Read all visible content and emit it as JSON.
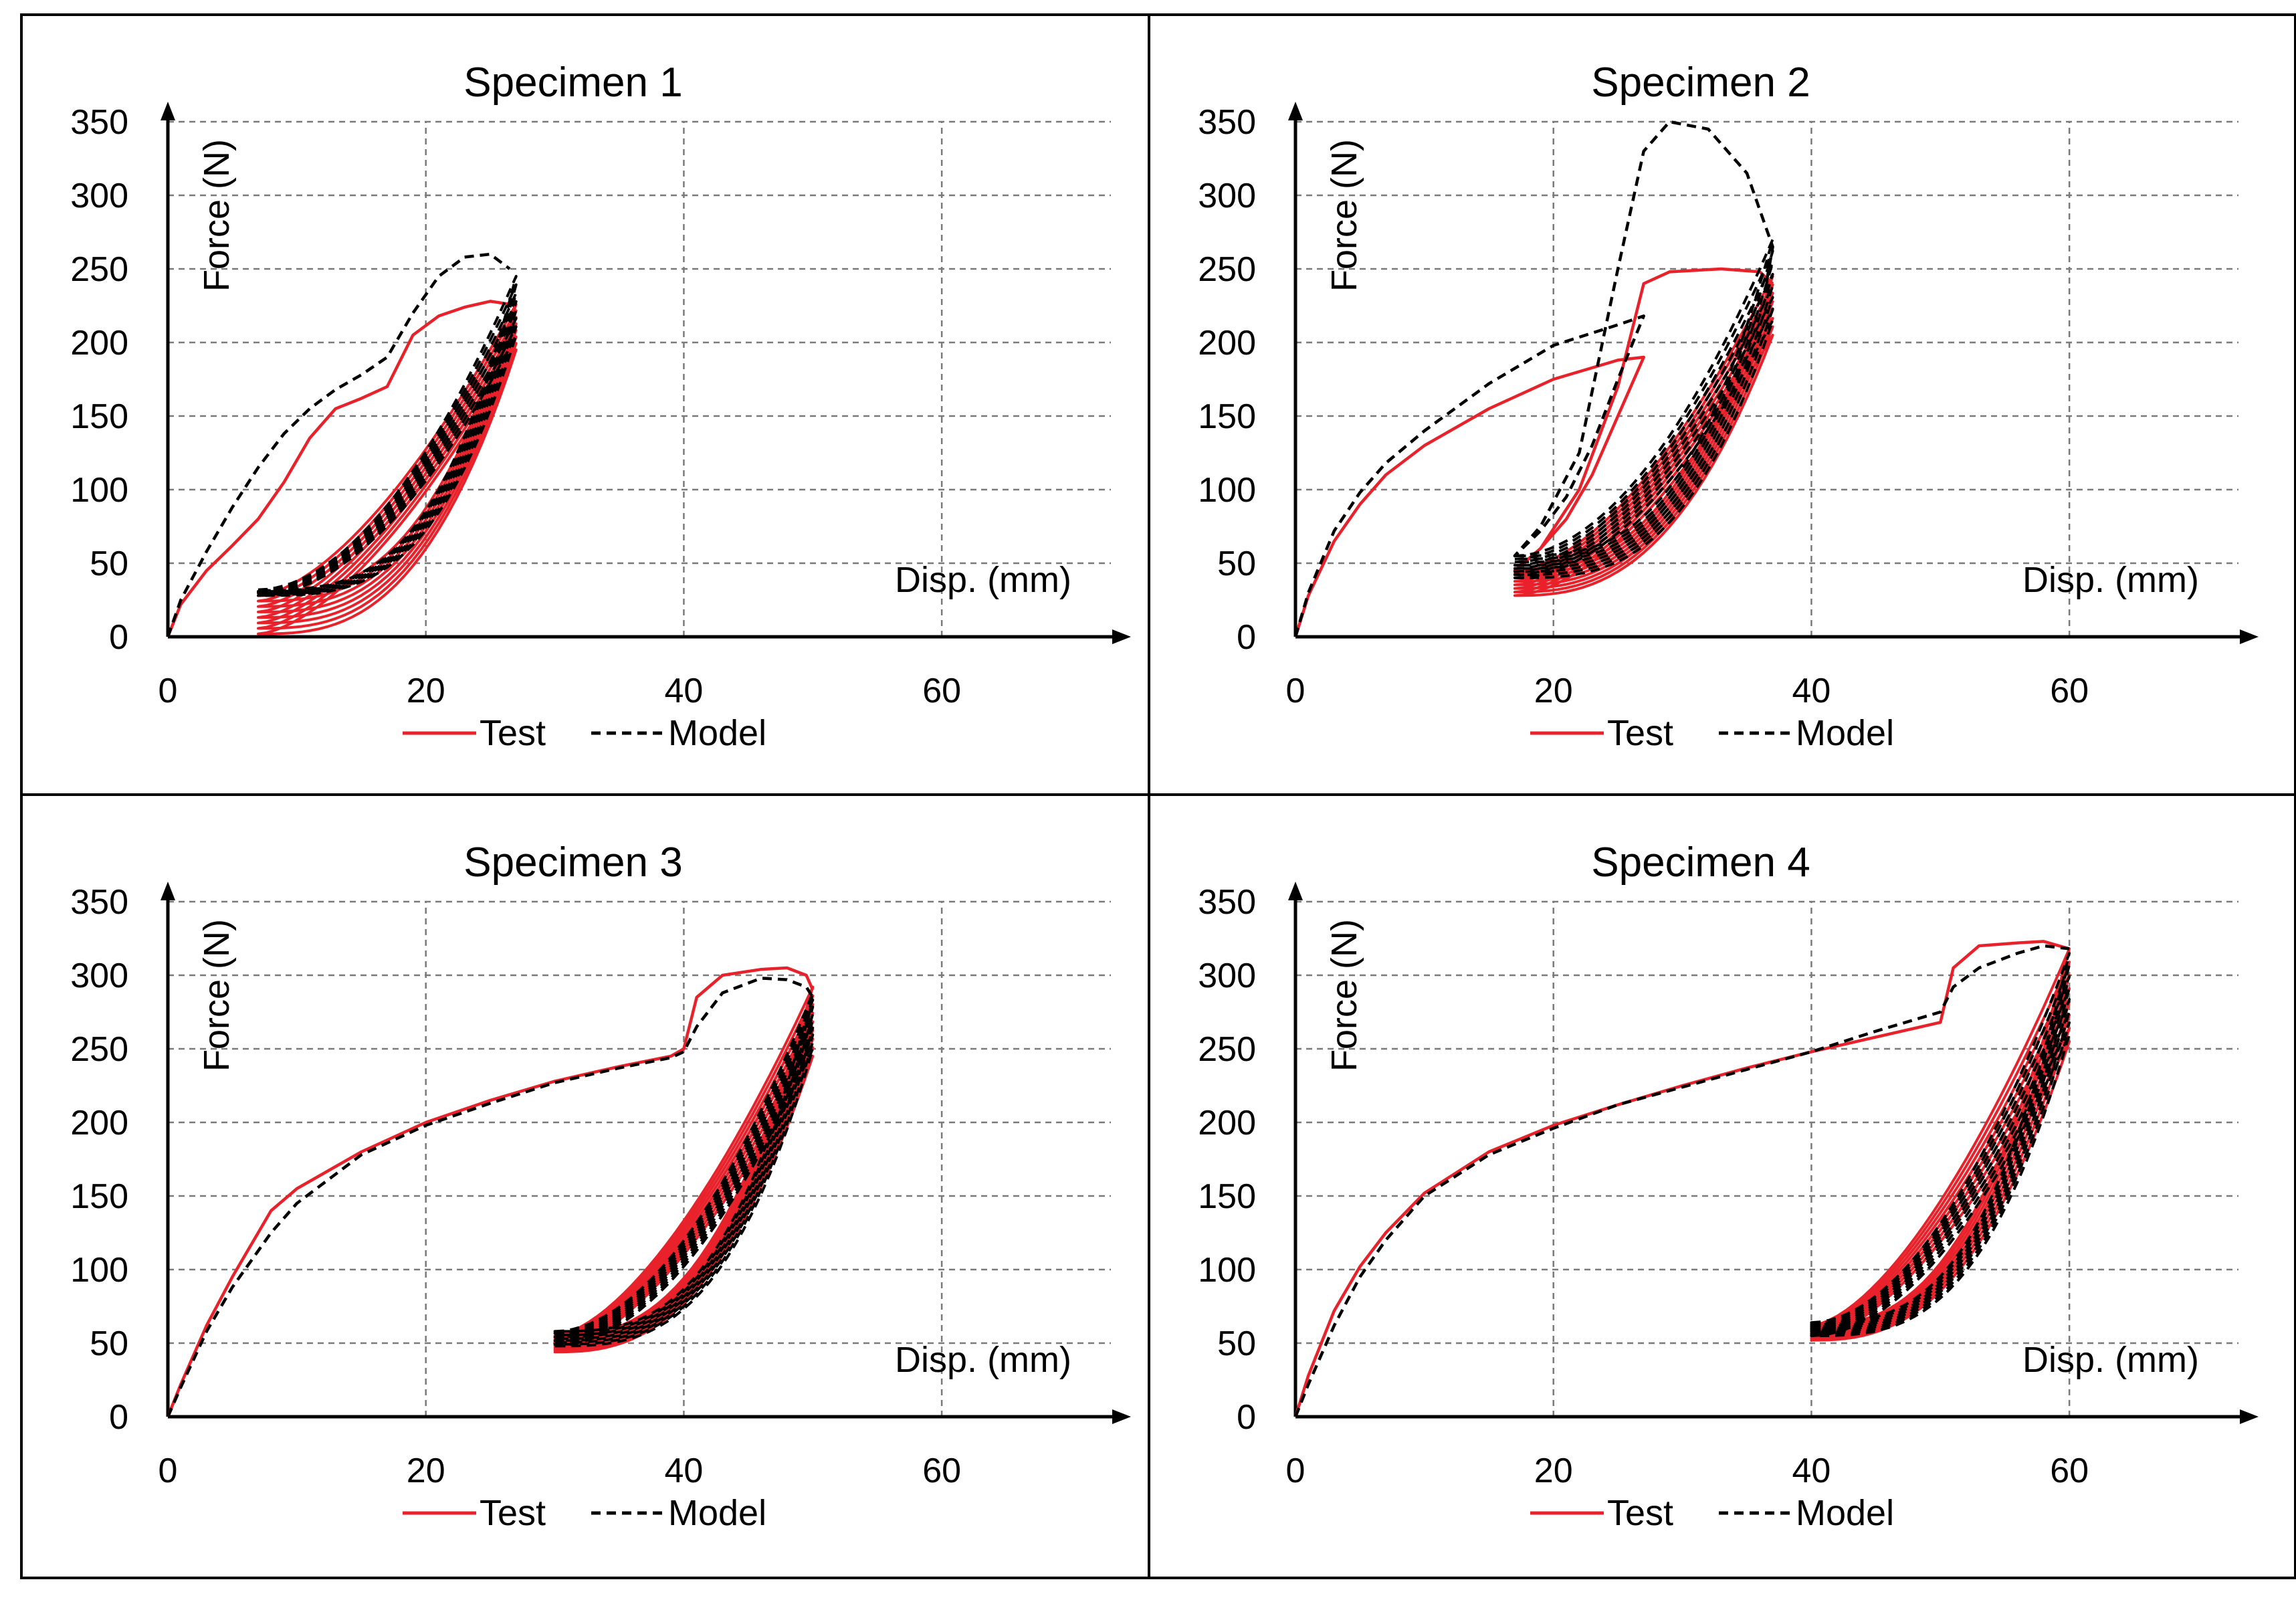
{
  "colors": {
    "test": "#e8212a",
    "model": "#000000",
    "grid": "#7a7a7a",
    "axis": "#000000",
    "frame": "#000000"
  },
  "chart_data": [
    {
      "type": "line",
      "title": "Specimen 1",
      "xlabel": "Disp. (mm)",
      "ylabel": "Force (N)",
      "xlim": [
        0,
        70
      ],
      "ylim": [
        0,
        350
      ],
      "xticks": [
        0,
        20,
        40,
        60
      ],
      "yticks": [
        0,
        50,
        100,
        150,
        200,
        250,
        300,
        350
      ],
      "grid": true,
      "legend": [
        "Test",
        "Model"
      ],
      "legend_position": "bottom-center",
      "series": [
        {
          "name": "Test",
          "style": "solid",
          "cycles": {
            "min": 7,
            "max": 27,
            "n": 8,
            "fmin_lo": 2,
            "fmin_hi": 28,
            "fmax_lo": 195,
            "fmax_hi": 226,
            "kl": 1.6,
            "ku": 2.8
          },
          "x": [
            0,
            1,
            3,
            5,
            7,
            9,
            11,
            13,
            15,
            17,
            19,
            21,
            23,
            25,
            26.5
          ],
          "y": [
            0,
            22,
            45,
            62,
            80,
            105,
            135,
            155,
            162,
            170,
            205,
            218,
            224,
            228,
            226
          ]
        },
        {
          "name": "Model",
          "style": "dashed",
          "cycles": {
            "min": 7,
            "max": 27,
            "n": 8,
            "fmin_lo": 28,
            "fmin_hi": 32,
            "fmax_lo": 205,
            "fmax_hi": 245,
            "kl": 1.9,
            "ku": 3.2
          },
          "x": [
            0,
            1,
            3,
            5,
            7,
            9,
            11,
            13,
            15,
            17,
            19,
            21,
            23,
            25,
            26.5
          ],
          "y": [
            0,
            25,
            58,
            88,
            115,
            138,
            155,
            168,
            178,
            190,
            220,
            245,
            258,
            260,
            250
          ]
        }
      ]
    },
    {
      "type": "line",
      "title": "Specimen 2",
      "xlabel": "Disp. (mm)",
      "ylabel": "Force (N)",
      "xlim": [
        0,
        70
      ],
      "ylim": [
        0,
        350
      ],
      "xticks": [
        0,
        20,
        40,
        60
      ],
      "yticks": [
        0,
        50,
        100,
        150,
        200,
        250,
        300,
        350
      ],
      "grid": true,
      "legend": [
        "Test",
        "Model"
      ],
      "legend_position": "bottom-center",
      "series": [
        {
          "name": "Test",
          "style": "solid",
          "cycles": {
            "min": 17,
            "max": 37,
            "n": 8,
            "fmin_lo": 28,
            "fmin_hi": 45,
            "fmax_lo": 205,
            "fmax_hi": 245,
            "kl": 1.7,
            "ku": 2.6
          },
          "x": [
            0,
            1,
            3,
            5,
            7,
            10,
            15,
            20,
            25,
            27,
            25,
            23,
            21,
            19,
            17,
            19,
            22,
            25,
            27,
            29,
            33,
            36,
            37
          ],
          "y": [
            0,
            28,
            65,
            90,
            110,
            130,
            155,
            175,
            188,
            190,
            150,
            110,
            80,
            60,
            45,
            60,
            100,
            170,
            240,
            248,
            250,
            248,
            240
          ]
        },
        {
          "name": "Model",
          "style": "dashed",
          "cycles": {
            "min": 17,
            "max": 37,
            "n": 8,
            "fmin_lo": 40,
            "fmin_hi": 55,
            "fmax_lo": 215,
            "fmax_hi": 270,
            "kl": 1.9,
            "ku": 3.0
          },
          "x": [
            0,
            1,
            3,
            5,
            7,
            10,
            15,
            20,
            25,
            27,
            25,
            23,
            21,
            19,
            17,
            19,
            22,
            25,
            27,
            29,
            32,
            35,
            37,
            36.5
          ],
          "y": [
            0,
            30,
            72,
            98,
            118,
            140,
            172,
            198,
            212,
            218,
            175,
            130,
            95,
            72,
            55,
            75,
            125,
            250,
            330,
            350,
            345,
            315,
            265,
            240
          ]
        }
      ]
    },
    {
      "type": "line",
      "title": "Specimen 3",
      "xlabel": "Disp. (mm)",
      "ylabel": "Force (N)",
      "xlim": [
        0,
        70
      ],
      "ylim": [
        0,
        350
      ],
      "xticks": [
        0,
        20,
        40,
        60
      ],
      "yticks": [
        0,
        50,
        100,
        150,
        200,
        250,
        300,
        350
      ],
      "grid": true,
      "legend": [
        "Test",
        "Model"
      ],
      "legend_position": "bottom-center",
      "series": [
        {
          "name": "Test",
          "style": "solid",
          "cycles": {
            "min": 30,
            "max": 50,
            "n": 9,
            "fmin_lo": 44,
            "fmin_hi": 55,
            "fmax_lo": 245,
            "fmax_hi": 292,
            "kl": 1.6,
            "ku": 2.6
          },
          "x": [
            0,
            1,
            3,
            5,
            8,
            10,
            15,
            20,
            25,
            30,
            35,
            39,
            40,
            41,
            43,
            46,
            48,
            49.5,
            50
          ],
          "y": [
            0,
            22,
            62,
            95,
            140,
            155,
            180,
            200,
            215,
            228,
            238,
            245,
            250,
            285,
            300,
            304,
            305,
            300,
            290
          ]
        },
        {
          "name": "Model",
          "style": "dashed",
          "cycles": {
            "min": 30,
            "max": 50,
            "n": 9,
            "fmin_lo": 48,
            "fmin_hi": 58,
            "fmax_lo": 250,
            "fmax_hi": 288,
            "kl": 1.9,
            "ku": 3.0
          },
          "x": [
            0,
            1,
            3,
            5,
            8,
            10,
            15,
            20,
            25,
            30,
            35,
            39,
            40,
            41,
            43,
            46,
            48,
            49.5,
            50
          ],
          "y": [
            0,
            20,
            58,
            88,
            125,
            145,
            178,
            198,
            213,
            227,
            237,
            244,
            248,
            265,
            288,
            298,
            297,
            292,
            285
          ]
        }
      ]
    },
    {
      "type": "line",
      "title": "Specimen 4",
      "xlabel": "Disp. (mm)",
      "ylabel": "Force (N)",
      "xlim": [
        0,
        70
      ],
      "ylim": [
        0,
        350
      ],
      "xticks": [
        0,
        20,
        40,
        60
      ],
      "yticks": [
        0,
        50,
        100,
        150,
        200,
        250,
        300,
        350
      ],
      "grid": true,
      "legend": [
        "Test",
        "Model"
      ],
      "legend_position": "bottom-center",
      "series": [
        {
          "name": "Test",
          "style": "solid",
          "cycles": {
            "min": 40,
            "max": 60,
            "n": 8,
            "fmin_lo": 52,
            "fmin_hi": 62,
            "fmax_lo": 255,
            "fmax_hi": 318,
            "kl": 1.6,
            "ku": 2.6
          },
          "x": [
            0,
            1,
            3,
            5,
            7,
            10,
            15,
            20,
            25,
            30,
            35,
            40,
            45,
            50,
            51,
            53,
            56,
            58,
            60
          ],
          "y": [
            0,
            28,
            72,
            102,
            125,
            152,
            180,
            198,
            212,
            225,
            237,
            248,
            258,
            268,
            305,
            320,
            322,
            323,
            318
          ]
        },
        {
          "name": "Model",
          "style": "dashed",
          "cycles": {
            "min": 40,
            "max": 60,
            "n": 8,
            "fmin_lo": 55,
            "fmin_hi": 64,
            "fmax_lo": 260,
            "fmax_hi": 315,
            "kl": 1.9,
            "ku": 3.0
          },
          "x": [
            0,
            1,
            3,
            5,
            7,
            10,
            15,
            20,
            25,
            30,
            35,
            40,
            45,
            50,
            51,
            53,
            56,
            58,
            60
          ],
          "y": [
            0,
            22,
            62,
            95,
            120,
            150,
            178,
            196,
            212,
            224,
            236,
            248,
            262,
            275,
            292,
            305,
            315,
            320,
            318
          ]
        }
      ]
    }
  ]
}
